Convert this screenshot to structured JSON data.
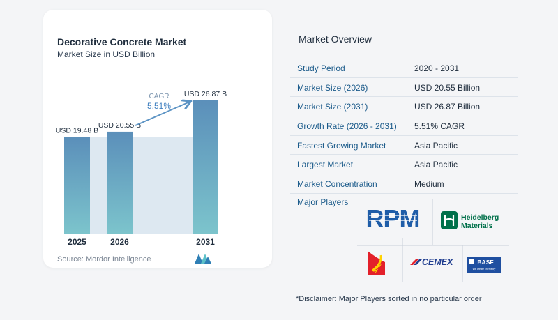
{
  "chart": {
    "title": "Decorative Concrete Market",
    "subtitle": "Market Size in USD Billion",
    "source": "Source:  Mordor Intelligence",
    "cagr_label": "CAGR",
    "cagr_value": "5.51%"
  },
  "chart_data": {
    "type": "bar",
    "categories": [
      "2025",
      "2026",
      "2031"
    ],
    "values": [
      19.48,
      20.55,
      26.87
    ],
    "data_labels": [
      "USD 19.48 B",
      "USD 20.55 B",
      "USD 26.87 B"
    ],
    "title": "Decorative Concrete Market",
    "subtitle": "Market Size in USD Billion",
    "xlabel": "",
    "ylabel": "",
    "grid": false,
    "annotations": [
      "CAGR 5.51%"
    ],
    "colors": {
      "bar_top": "#5b8fba",
      "bar_bottom": "#7cc4cc",
      "band": "#dde8f1",
      "arrow": "#5b93c4"
    }
  },
  "overview": {
    "title": "Market Overview",
    "rows": [
      {
        "label": "Study Period",
        "value": "2020 - 2031"
      },
      {
        "label": "Market Size (2026)",
        "value": "USD 20.55 Billion"
      },
      {
        "label": "Market Size (2031)",
        "value": "USD 26.87 Billion"
      },
      {
        "label": "Growth Rate (2026 - 2031)",
        "value": "5.51% CAGR"
      },
      {
        "label": "Fastest Growing Market",
        "value": "Asia Pacific"
      },
      {
        "label": "Largest Market",
        "value": "Asia Pacific"
      },
      {
        "label": "Market Concentration",
        "value": "Medium"
      }
    ],
    "players_title": "Major Players",
    "players": [
      {
        "name": "RPM"
      },
      {
        "name": "Heidelberg",
        "line2": "Materials"
      },
      {
        "name": "Sika"
      },
      {
        "name": "CEMEX"
      },
      {
        "name": "BASF",
        "tagline": "We create chemistry"
      }
    ],
    "disclaimer": "*Disclaimer: Major Players sorted in no particular order"
  }
}
